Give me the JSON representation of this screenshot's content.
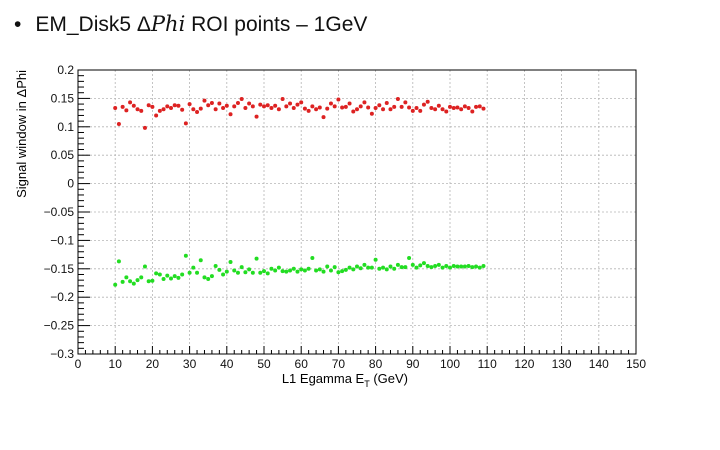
{
  "slide": {
    "bullet": "•",
    "title_prefix": "EM_Disk5 Δ",
    "title_math": "Phi",
    "title_suffix": " ROI points – 1GeV"
  },
  "chart_data": {
    "type": "scatter",
    "title": "",
    "xlabel": "L1 Egamma E_T (GeV)",
    "ylabel": "Signal window in ΔPhi",
    "xlim": [
      0,
      150
    ],
    "ylim": [
      -0.3,
      0.2
    ],
    "xticks": [
      0,
      10,
      20,
      30,
      40,
      50,
      60,
      70,
      80,
      90,
      100,
      110,
      120,
      130,
      140,
      150
    ],
    "yticks": [
      -0.3,
      -0.25,
      -0.2,
      -0.15,
      -0.1,
      -0.05,
      0,
      0.05,
      0.1,
      0.15,
      0.2
    ],
    "ytick_labels": [
      "−0.3",
      "−0.25",
      "−0.2",
      "−0.15",
      "−0.1",
      "−0.05",
      "0",
      "0.05",
      "0.1",
      "0.15",
      "0.2"
    ],
    "grid": true,
    "series": [
      {
        "color": "#dd2222",
        "x": [
          10,
          11,
          12,
          13,
          14,
          15,
          16,
          17,
          18,
          19,
          20,
          21,
          22,
          23,
          24,
          25,
          26,
          27,
          28,
          29,
          30,
          31,
          32,
          33,
          34,
          35,
          36,
          37,
          38,
          39,
          40,
          41,
          42,
          43,
          44,
          45,
          46,
          47,
          48,
          49,
          50,
          51,
          52,
          53,
          54,
          55,
          56,
          57,
          58,
          59,
          60,
          61,
          62,
          63,
          64,
          65,
          66,
          67,
          68,
          69,
          70,
          71,
          72,
          73,
          74,
          75,
          76,
          77,
          78,
          79,
          80,
          81,
          82,
          83,
          84,
          85,
          86,
          87,
          88,
          89,
          90,
          91,
          92,
          93,
          94,
          95,
          96,
          97,
          98,
          99,
          100,
          101,
          102,
          103,
          104,
          105,
          106,
          107,
          108,
          109
        ],
        "y": [
          0.133,
          0.105,
          0.135,
          0.129,
          0.143,
          0.137,
          0.131,
          0.128,
          0.098,
          0.138,
          0.135,
          0.12,
          0.128,
          0.131,
          0.136,
          0.133,
          0.138,
          0.137,
          0.13,
          0.106,
          0.14,
          0.131,
          0.126,
          0.132,
          0.146,
          0.138,
          0.142,
          0.131,
          0.141,
          0.133,
          0.137,
          0.122,
          0.136,
          0.142,
          0.149,
          0.133,
          0.141,
          0.136,
          0.118,
          0.139,
          0.136,
          0.138,
          0.133,
          0.137,
          0.131,
          0.149,
          0.136,
          0.141,
          0.133,
          0.139,
          0.143,
          0.132,
          0.128,
          0.136,
          0.131,
          0.134,
          0.117,
          0.132,
          0.141,
          0.136,
          0.148,
          0.134,
          0.135,
          0.141,
          0.127,
          0.131,
          0.136,
          0.143,
          0.134,
          0.123,
          0.133,
          0.138,
          0.131,
          0.142,
          0.131,
          0.135,
          0.149,
          0.135,
          0.143,
          0.134,
          0.128,
          0.133,
          0.128,
          0.139,
          0.144,
          0.133,
          0.131,
          0.137,
          0.131,
          0.127,
          0.135,
          0.133,
          0.134,
          0.131,
          0.136,
          0.133,
          0.127,
          0.135,
          0.136,
          0.132
        ]
      },
      {
        "color": "#22dd22",
        "x": [
          10,
          11,
          12,
          13,
          14,
          15,
          16,
          17,
          18,
          19,
          20,
          21,
          22,
          23,
          24,
          25,
          26,
          27,
          28,
          29,
          30,
          31,
          32,
          33,
          34,
          35,
          36,
          37,
          38,
          39,
          40,
          41,
          42,
          43,
          44,
          45,
          46,
          47,
          48,
          49,
          50,
          51,
          52,
          53,
          54,
          55,
          56,
          57,
          58,
          59,
          60,
          61,
          62,
          63,
          64,
          65,
          66,
          67,
          68,
          69,
          70,
          71,
          72,
          73,
          74,
          75,
          76,
          77,
          78,
          79,
          80,
          81,
          82,
          83,
          84,
          85,
          86,
          87,
          88,
          89,
          90,
          91,
          92,
          93,
          94,
          95,
          96,
          97,
          98,
          99,
          100,
          101,
          102,
          103,
          104,
          105,
          106,
          107,
          108,
          109
        ],
        "y": [
          -0.178,
          -0.137,
          -0.173,
          -0.165,
          -0.172,
          -0.176,
          -0.17,
          -0.165,
          -0.146,
          -0.172,
          -0.171,
          -0.158,
          -0.16,
          -0.168,
          -0.162,
          -0.167,
          -0.163,
          -0.166,
          -0.16,
          -0.127,
          -0.157,
          -0.148,
          -0.157,
          -0.135,
          -0.165,
          -0.168,
          -0.163,
          -0.145,
          -0.152,
          -0.16,
          -0.155,
          -0.138,
          -0.153,
          -0.157,
          -0.147,
          -0.156,
          -0.151,
          -0.157,
          -0.132,
          -0.157,
          -0.154,
          -0.158,
          -0.15,
          -0.153,
          -0.148,
          -0.154,
          -0.155,
          -0.153,
          -0.15,
          -0.155,
          -0.151,
          -0.153,
          -0.15,
          -0.131,
          -0.153,
          -0.151,
          -0.155,
          -0.146,
          -0.153,
          -0.147,
          -0.156,
          -0.154,
          -0.152,
          -0.148,
          -0.151,
          -0.146,
          -0.149,
          -0.143,
          -0.148,
          -0.148,
          -0.134,
          -0.15,
          -0.148,
          -0.151,
          -0.146,
          -0.15,
          -0.143,
          -0.147,
          -0.147,
          -0.131,
          -0.143,
          -0.148,
          -0.144,
          -0.14,
          -0.145,
          -0.147,
          -0.145,
          -0.143,
          -0.148,
          -0.145,
          -0.148,
          -0.145,
          -0.146,
          -0.146,
          -0.146,
          -0.145,
          -0.147,
          -0.146,
          -0.148,
          -0.145
        ]
      }
    ]
  }
}
